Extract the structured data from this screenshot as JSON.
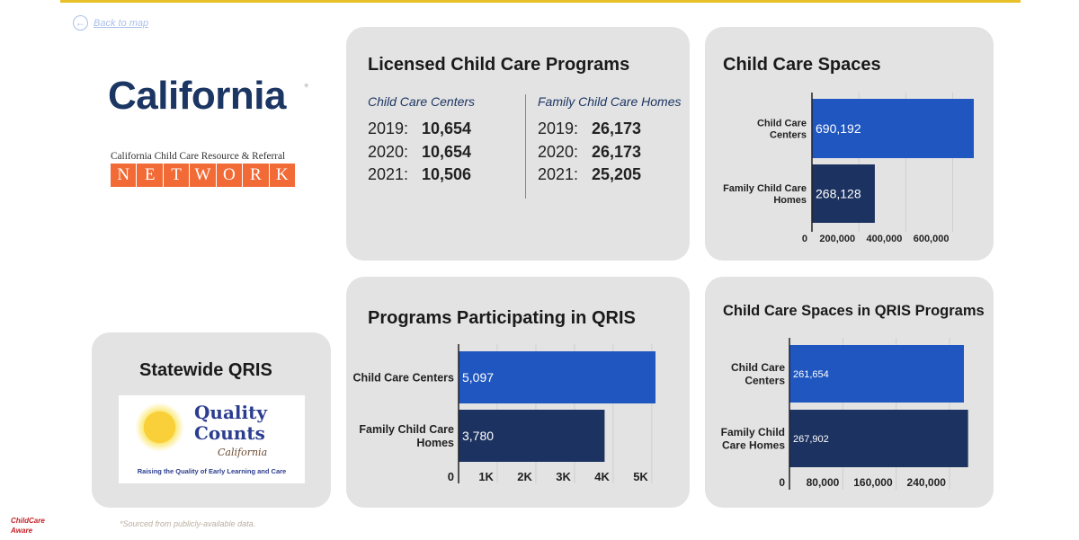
{
  "back_link": "Back to map",
  "state": {
    "name": "California",
    "asterisk": "*"
  },
  "network_logo": {
    "top": "California Child Care Resource & Referral",
    "letters": [
      "N",
      "E",
      "T",
      "W",
      "O",
      "R",
      "K"
    ]
  },
  "licensed": {
    "title": "Licensed Child Care Programs",
    "centers": {
      "label": "Child Care Centers",
      "rows": [
        {
          "year": "2019:",
          "value": "10,654"
        },
        {
          "year": "2020:",
          "value": "10,654"
        },
        {
          "year": "2021:",
          "value": "10,506"
        }
      ]
    },
    "homes": {
      "label": "Family Child Care Homes",
      "rows": [
        {
          "year": "2019:",
          "value": "26,173"
        },
        {
          "year": "2020:",
          "value": "26,173"
        },
        {
          "year": "2021:",
          "value": "25,205"
        }
      ]
    }
  },
  "statewide_qris": {
    "title": "Statewide QRIS",
    "logo": {
      "line1": "Quality",
      "line2": "Counts",
      "line3": "California",
      "tagline": "Raising the Quality of Early Learning and Care"
    }
  },
  "footnote": "*Sourced from publicly-available data.",
  "cca_logo": "ChildCare Aware",
  "colors": {
    "bar_centers": "#1f56c0",
    "bar_homes": "#1c3260",
    "card": "#e3e3e3",
    "title": "#1c3664",
    "accent": "#e8c02a"
  },
  "chart_data": [
    {
      "id": "spaces",
      "type": "bar",
      "orientation": "horizontal",
      "title": "Child Care Spaces",
      "categories": [
        "Child Care Centers",
        "Family Child Care Homes"
      ],
      "values": [
        690192,
        268128
      ],
      "labels": [
        "690,192",
        "268,128"
      ],
      "ticks": [
        0,
        200000,
        400000,
        600000
      ],
      "tick_labels": [
        "0",
        "200,000",
        "400,000",
        "600,000"
      ],
      "grid": true
    },
    {
      "id": "qris_programs",
      "type": "bar",
      "orientation": "horizontal",
      "title": "Programs Participating in QRIS",
      "categories": [
        "Child Care Centers",
        "Family Child Care Homes"
      ],
      "values": [
        5097,
        3780
      ],
      "labels": [
        "5,097",
        "3,780"
      ],
      "ticks": [
        0,
        1000,
        2000,
        3000,
        4000,
        5000
      ],
      "tick_labels": [
        "0",
        "1K",
        "2K",
        "3K",
        "4K",
        "5K"
      ],
      "grid": true
    },
    {
      "id": "qris_spaces",
      "type": "bar",
      "orientation": "horizontal",
      "title": "Child Care Spaces in QRIS Programs",
      "categories": [
        "Child Care Centers",
        "Family Child Care Homes"
      ],
      "values": [
        261654,
        267902
      ],
      "labels": [
        "261,654",
        "267,902"
      ],
      "ticks": [
        0,
        80000,
        160000,
        240000
      ],
      "tick_labels": [
        "0",
        "80,000",
        "160,000",
        "240,000"
      ],
      "grid": true
    }
  ]
}
